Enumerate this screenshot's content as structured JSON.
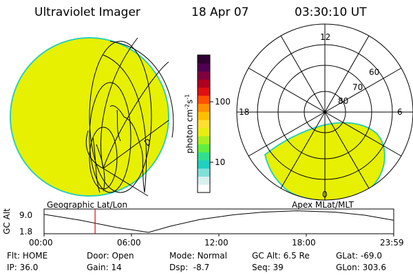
{
  "header": {
    "instrument": "Ultraviolet Imager",
    "date": "18 Apr 07",
    "time": "03:30:10 UT"
  },
  "left_panel": {
    "caption": "Geographic Lat/Lon"
  },
  "right_panel": {
    "caption": "Apex MLat/MLT",
    "mlt_labels": {
      "top": "12",
      "left": "18",
      "right": "6",
      "bottom": "0"
    },
    "lat_labels": [
      "60",
      "70",
      "80"
    ]
  },
  "colorbar": {
    "unit": "photon cm",
    "exp1": "-2",
    "mid": "s",
    "exp2": "-1",
    "tick_labels": [
      "100",
      "10"
    ],
    "colors": [
      "#ffffff",
      "#d8f0f0",
      "#80e0d8",
      "#20d0c0",
      "#30e090",
      "#60ee40",
      "#a8ee20",
      "#e8ee10",
      "#ffe030",
      "#ffc000",
      "#ff9000",
      "#ff5000",
      "#e01010",
      "#b00020",
      "#800040",
      "#500050",
      "#300030"
    ]
  },
  "timeline": {
    "axis_label": "GC Alt",
    "y_ticks": [
      "9.0",
      "1.8"
    ],
    "x_ticks": [
      "00:00",
      "06:00",
      "12:00",
      "18:00",
      "23:59"
    ],
    "marker_time": "03:30"
  },
  "footer": {
    "flt_label": "Flt:",
    "flt_value": "HOME",
    "door_label": "Door:",
    "door_value": "Open",
    "mode_label": "Mode:",
    "mode_value": "Normal",
    "gcalt_label": "GC Alt:",
    "gcalt_value": "6.5 Re",
    "glat_label": "GLat:",
    "glat_value": "-69.0",
    "ip_label": "IP:",
    "ip_value": "36.0",
    "gain_label": "Gain:",
    "gain_value": "14",
    "dsp_label": "Dsp:",
    "dsp_value": "-8.7",
    "seq_label": "Seq:",
    "seq_value": "39",
    "glon_label": "GLon:",
    "glon_value": "303.6"
  },
  "colors": {
    "image_fill": "#e6f000",
    "image_edge": "#30d0b0",
    "marker": "#d01010"
  }
}
